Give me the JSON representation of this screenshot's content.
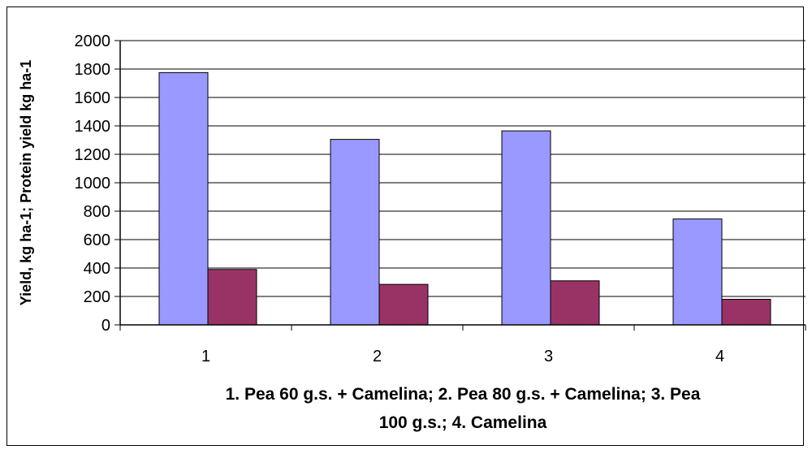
{
  "chart_data": {
    "type": "bar",
    "categories": [
      "1",
      "2",
      "3",
      "4"
    ],
    "series": [
      {
        "values": [
          1775,
          1305,
          1365,
          745
        ],
        "color": "#9999ff"
      },
      {
        "values": [
          390,
          285,
          310,
          180
        ],
        "color": "#993366"
      }
    ],
    "ylabel": "Yield, kg ha-1; Protein yield kg ha-1",
    "xlabel_lines": [
      "1. Pea 60 g.s. + Camelina; 2. Pea 80 g.s. + Camelina; 3. Pea",
      "100 g.s.; 4. Camelina"
    ],
    "ylim": [
      0,
      2000
    ],
    "yticks": [
      0,
      200,
      400,
      600,
      800,
      1000,
      1200,
      1400,
      1600,
      1800,
      2000
    ],
    "grid": true,
    "legend": "none"
  }
}
